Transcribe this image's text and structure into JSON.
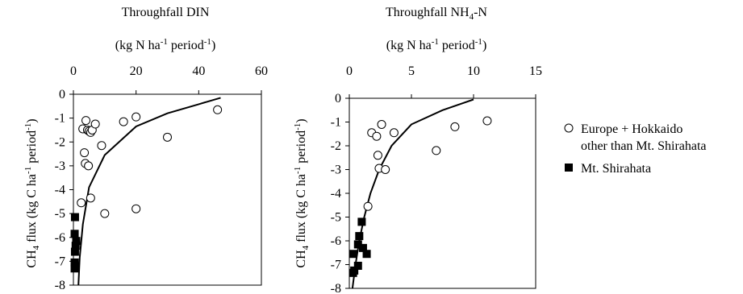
{
  "legend": {
    "open_label_1": "Europe + Hokkaido",
    "open_label_2": "other than Mt. Shirahata",
    "filled_label": "Mt. Shirahata",
    "position": "right"
  },
  "chart_data": [
    {
      "type": "scatter",
      "title": "Throughfall DIN",
      "xlabel": "(kg N ha-1 period-1)",
      "ylabel": "CH4 flux (kg C ha-1 period-1)",
      "xlim": [
        0,
        60
      ],
      "ylim": [
        -8,
        0
      ],
      "xticks": [
        "0",
        "20",
        "40",
        "60"
      ],
      "yticks": [
        "0",
        "-1",
        "-2",
        "-3",
        "-4",
        "-5",
        "-6",
        "-7",
        "-8"
      ],
      "x_axis_position": "top",
      "grid": false,
      "series": [
        {
          "name": "Europe + Hokkaido other than Mt. Shirahata",
          "marker": "open-circle",
          "points": [
            [
              3,
              -1.45
            ],
            [
              4,
              -1.1
            ],
            [
              4.5,
              -1.5
            ],
            [
              5,
              -1.55
            ],
            [
              5.5,
              -1.6
            ],
            [
              6,
              -1.5
            ],
            [
              7,
              -1.25
            ],
            [
              9,
              -2.15
            ],
            [
              16,
              -1.15
            ],
            [
              20,
              -0.95
            ],
            [
              30,
              -1.8
            ],
            [
              46,
              -0.65
            ],
            [
              3.5,
              -2.45
            ],
            [
              3.8,
              -2.9
            ],
            [
              4.8,
              -3.0
            ],
            [
              2.5,
              -4.55
            ],
            [
              5.5,
              -4.35
            ],
            [
              10,
              -5.0
            ],
            [
              20,
              -4.8
            ]
          ]
        },
        {
          "name": "Mt. Shirahata",
          "marker": "filled-square",
          "points": [
            [
              0.5,
              -5.15
            ],
            [
              0.4,
              -5.85
            ],
            [
              0.9,
              -6.15
            ],
            [
              0.7,
              -6.35
            ],
            [
              0.5,
              -6.6
            ],
            [
              0.4,
              -7.05
            ],
            [
              0.4,
              -7.3
            ]
          ]
        }
      ],
      "fit_curve": [
        [
          1.6,
          -8
        ],
        [
          2,
          -6.85
        ],
        [
          3,
          -5.45
        ],
        [
          5,
          -3.9
        ],
        [
          10,
          -2.55
        ],
        [
          20,
          -1.35
        ],
        [
          30,
          -0.8
        ],
        [
          40,
          -0.42
        ],
        [
          47,
          -0.15
        ]
      ]
    },
    {
      "type": "scatter",
      "title": "Throughfall NH4-N",
      "xlabel": "(kg N ha-1 period-1)",
      "ylabel": "CH4 flux (kg C ha-1 period-1)",
      "xlim": [
        0,
        15
      ],
      "ylim": [
        -8,
        0
      ],
      "xticks": [
        "0",
        "5",
        "10",
        "15"
      ],
      "yticks": [
        "0",
        "-1",
        "-2",
        "-3",
        "-4",
        "-5",
        "-6",
        "-7",
        "-8"
      ],
      "x_axis_position": "top",
      "grid": false,
      "series": [
        {
          "name": "Europe + Hokkaido other than Mt. Shirahata",
          "marker": "open-circle",
          "points": [
            [
              1.8,
              -1.45
            ],
            [
              2.2,
              -1.6
            ],
            [
              2.6,
              -1.1
            ],
            [
              3.6,
              -1.45
            ],
            [
              2.3,
              -2.4
            ],
            [
              2.4,
              -2.95
            ],
            [
              2.9,
              -3.0
            ],
            [
              1.5,
              -4.55
            ],
            [
              7,
              -2.2
            ],
            [
              8.5,
              -1.2
            ],
            [
              11.1,
              -0.95
            ]
          ]
        },
        {
          "name": "Mt. Shirahata",
          "marker": "filled-square",
          "points": [
            [
              1.0,
              -5.2
            ],
            [
              0.8,
              -5.8
            ],
            [
              0.7,
              -6.15
            ],
            [
              1.1,
              -6.3
            ],
            [
              0.3,
              -6.55
            ],
            [
              1.4,
              -6.55
            ],
            [
              0.7,
              -7.05
            ],
            [
              0.4,
              -7.25
            ],
            [
              0.3,
              -7.35
            ]
          ]
        }
      ],
      "fit_curve": [
        [
          0.25,
          -8
        ],
        [
          0.5,
          -7.0
        ],
        [
          0.8,
          -6.0
        ],
        [
          1.2,
          -5.0
        ],
        [
          1.7,
          -4.0
        ],
        [
          2.4,
          -3.0
        ],
        [
          3.4,
          -2.0
        ],
        [
          5,
          -1.1
        ],
        [
          7.5,
          -0.5
        ],
        [
          10,
          -0.05
        ]
      ]
    }
  ]
}
